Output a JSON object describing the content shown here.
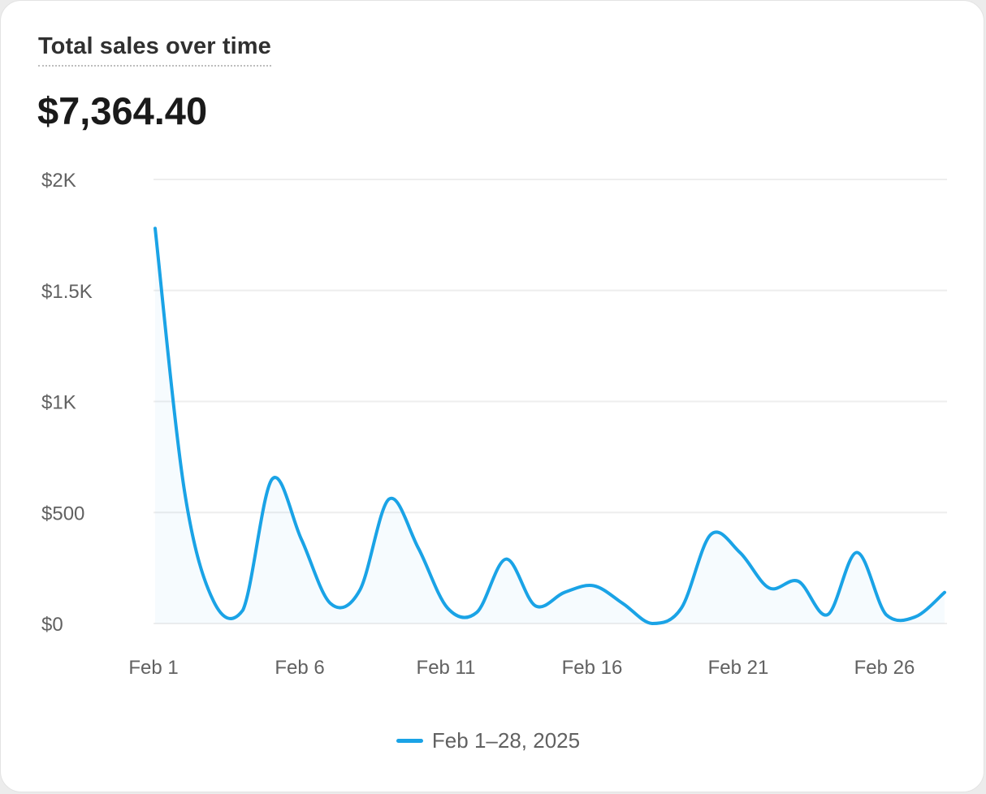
{
  "card": {
    "title": "Total sales over time",
    "total": "$7,364.40"
  },
  "colors": {
    "series": "#1aa3e6",
    "grid": "#eeeeee",
    "tick_text": "#616161"
  },
  "chart_data": {
    "type": "line",
    "title": "Total sales over time",
    "xlabel": "",
    "ylabel": "",
    "x": [
      1,
      2,
      3,
      4,
      5,
      6,
      7,
      8,
      9,
      10,
      11,
      12,
      13,
      14,
      15,
      16,
      17,
      18,
      19,
      20,
      21,
      22,
      23,
      24,
      25,
      26,
      27,
      28
    ],
    "x_tick_values": [
      1,
      6,
      11,
      16,
      21,
      26
    ],
    "x_tick_labels": [
      "Feb 1",
      "Feb 6",
      "Feb 11",
      "Feb 16",
      "Feb 21",
      "Feb 26"
    ],
    "ylim": [
      0,
      2000
    ],
    "y_ticks": [
      0,
      500,
      1000,
      1500,
      2000
    ],
    "y_tick_labels": [
      "$0",
      "$500",
      "$1K",
      "$1.5K",
      "$2K"
    ],
    "grid": true,
    "legend_position": "bottom-center",
    "series": [
      {
        "name": "Feb 1–28, 2025",
        "values": [
          1780,
          600,
          100,
          60,
          650,
          380,
          90,
          150,
          560,
          340,
          70,
          50,
          290,
          80,
          140,
          170,
          90,
          0,
          70,
          400,
          320,
          160,
          190,
          40,
          320,
          40,
          30,
          140
        ]
      }
    ]
  }
}
